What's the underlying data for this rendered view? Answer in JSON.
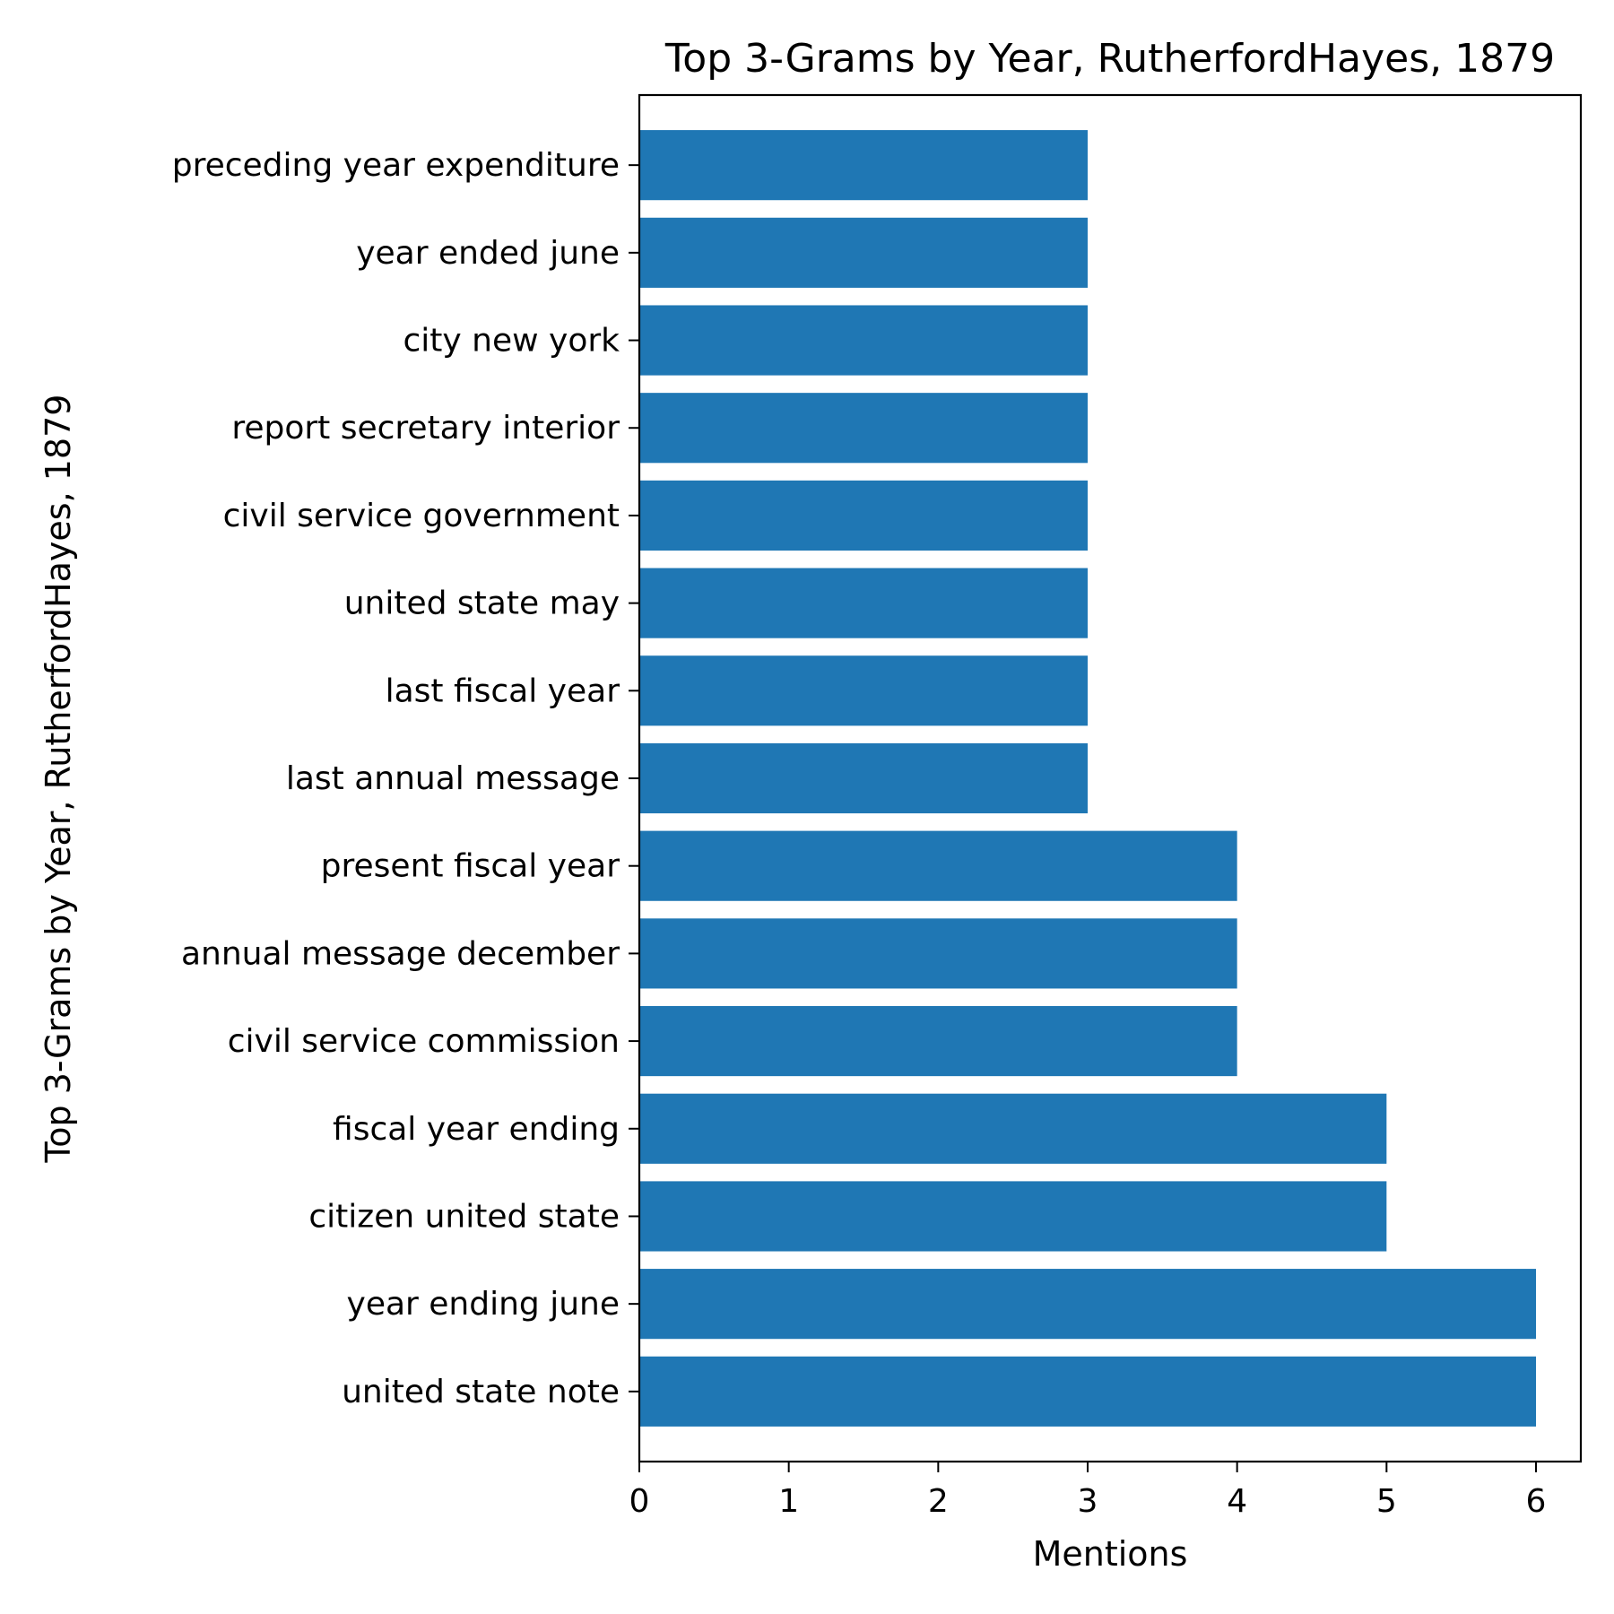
{
  "chart_data": {
    "type": "bar",
    "orientation": "horizontal",
    "title": "Top 3-Grams by Year, RutherfordHayes, 1879",
    "xlabel": "Mentions",
    "ylabel": "Top 3-Grams by Year, RutherfordHayes, 1879",
    "categories": [
      "united state note",
      "year ending june",
      "citizen united state",
      "fiscal year ending",
      "civil service commission",
      "annual message december",
      "present fiscal year",
      "last annual message",
      "last fiscal year",
      "united state may",
      "civil service government",
      "report secretary interior",
      "city new york",
      "year ended june",
      "preceding year expenditure"
    ],
    "values": [
      6,
      6,
      5,
      5,
      4,
      4,
      4,
      3,
      3,
      3,
      3,
      3,
      3,
      3,
      3
    ],
    "xlim": [
      0,
      6.3
    ],
    "xticks": [
      "0",
      "1",
      "2",
      "3",
      "4",
      "5",
      "6"
    ],
    "grid": false,
    "bar_color": "#1f77b4"
  }
}
